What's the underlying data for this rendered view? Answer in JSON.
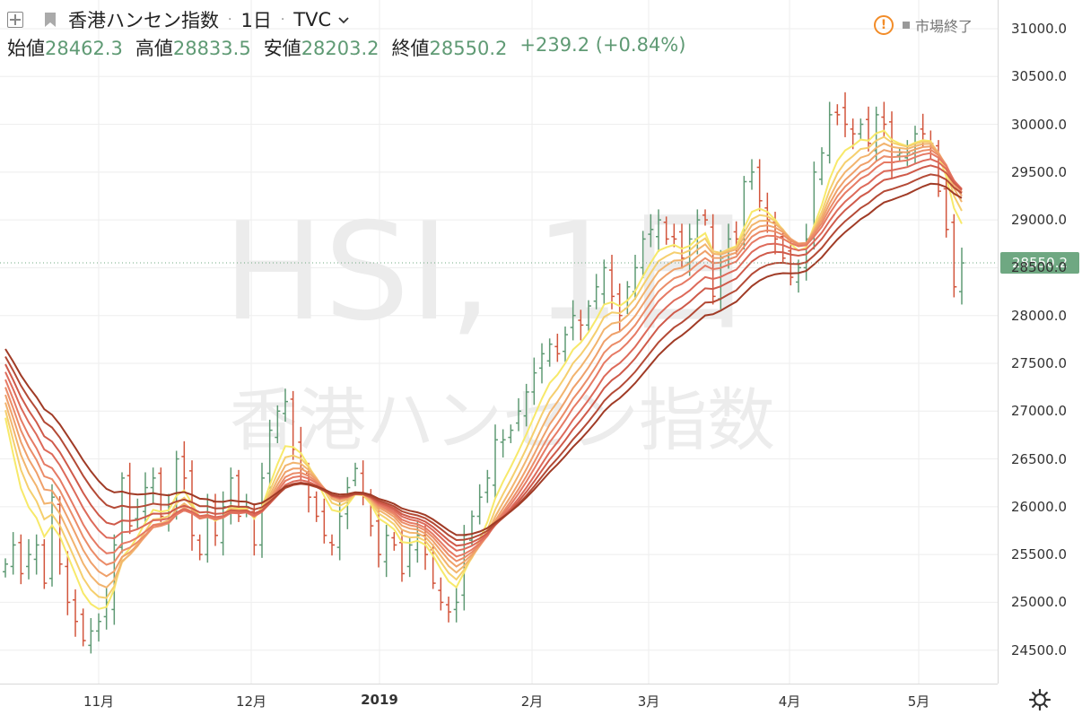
{
  "header": {
    "symbol_name": "香港ハンセン指数",
    "interval": "1日",
    "exchange": "TVC",
    "ohlc": {
      "open_label": "始値",
      "open": "28462.3",
      "high_label": "高値",
      "high": "28833.5",
      "low_label": "安値",
      "low": "28203.2",
      "close_label": "終値",
      "close": "28550.2",
      "change": "+239.2 (+0.84%)"
    },
    "alert_glyph": "!",
    "market_status": "市場終了"
  },
  "watermark": {
    "ticker": "HSI, 1日",
    "name": "香港ハンセン指数"
  },
  "last_price_label": "28550.2",
  "colors": {
    "up": "#5f9a74",
    "down": "#d2553c",
    "last_price_tag": "#6fa882",
    "ribbon": [
      "#f7e96a",
      "#f5cf6e",
      "#f2b46e",
      "#efa06a",
      "#eb8c68",
      "#e67a64",
      "#dd6a5a",
      "#cf5a4a",
      "#b44a36",
      "#a03b26"
    ]
  },
  "icons": {
    "expand": "plus-square-icon",
    "symbol_flag": "flag-icon",
    "chevron": "chevron-down-icon",
    "alert": "alert-circle-icon",
    "settings": "gear-icon"
  },
  "chart_data": {
    "type": "ohlc",
    "price_axis_ticks": [
      "31000.0",
      "30500.0",
      "30000.0",
      "29500.0",
      "29000.0",
      "28500.0",
      "28000.0",
      "27500.0",
      "27000.0",
      "26500.0",
      "26000.0",
      "25500.0",
      "25000.0",
      "24500.0"
    ],
    "time_axis_labels": [
      "11月",
      "12月",
      "2019",
      "2月",
      "3月",
      "4月",
      "5月"
    ],
    "ylim": [
      24150,
      31300
    ],
    "series_close_approx": [
      25400,
      25600,
      25300,
      25500,
      25600,
      25200,
      26100,
      25400,
      25000,
      24800,
      24600,
      24700,
      24800,
      25000,
      25600,
      26300,
      25800,
      26000,
      26200,
      26300,
      25900,
      26000,
      26500,
      26300,
      25700,
      25500,
      26000,
      25700,
      26000,
      26300,
      25900,
      26000,
      25600,
      26300,
      26800,
      27000,
      27100,
      26600,
      26400,
      26100,
      25900,
      25700,
      25600,
      25900,
      26200,
      26400,
      26100,
      25800,
      25500,
      25700,
      25600,
      25300,
      25600,
      25700,
      25500,
      25200,
      25000,
      24900,
      25000,
      25700,
      25900,
      26100,
      26300,
      26700,
      26700,
      26800,
      27000,
      27200,
      27400,
      27600,
      27700,
      27600,
      27800,
      28000,
      27900,
      28100,
      28300,
      28500,
      28200,
      28000,
      28300,
      28500,
      28800,
      28900,
      29000,
      28800,
      28800,
      28600,
      28800,
      29000,
      29000,
      28200,
      28600,
      28800,
      28800,
      29400,
      29500,
      29200,
      29000,
      28800,
      28600,
      28400,
      28500,
      28800,
      29500,
      29700,
      30100,
      30100,
      30000,
      29900,
      30000,
      29800,
      30100,
      30000,
      29600,
      29700,
      29700,
      29900,
      29900,
      29800,
      29300,
      28900,
      28300,
      28550
    ],
    "ribbon_series_count": 10
  },
  "status_bar": {}
}
